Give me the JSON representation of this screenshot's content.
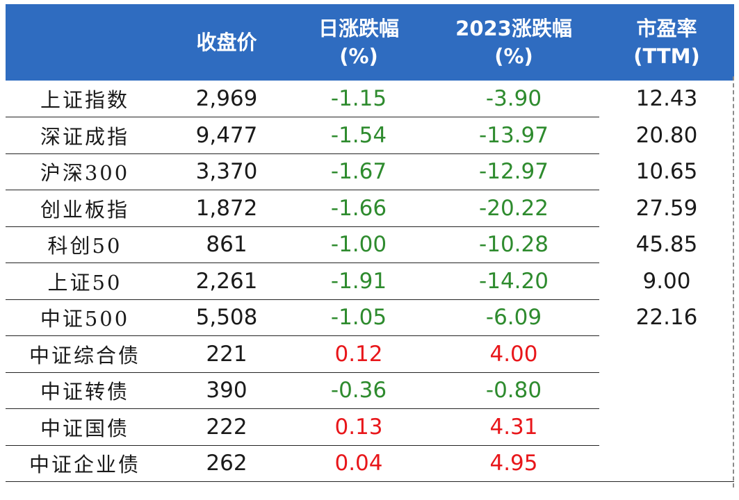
{
  "header": {
    "col0": "",
    "col1": "收盘价",
    "col2_line1": "日涨跌幅",
    "col2_line2": "(%)",
    "col3_line1": "2023涨跌幅",
    "col3_line2": "(%)",
    "col4_line1": "市盈率",
    "col4_line2": "(TTM)"
  },
  "colors": {
    "header_bg": "#2f6cc0",
    "negative": "#2e8b2e",
    "positive": "#e8161a"
  },
  "rows": [
    {
      "name": "上证指数",
      "close": "2,969",
      "daily": "-1.15",
      "ytd": "-3.90",
      "pe": "12.43"
    },
    {
      "name": "深证成指",
      "close": "9,477",
      "daily": "-1.54",
      "ytd": "-13.97",
      "pe": "20.80"
    },
    {
      "name": "沪深300",
      "close": "3,370",
      "daily": "-1.67",
      "ytd": "-12.97",
      "pe": "10.65"
    },
    {
      "name": "创业板指",
      "close": "1,872",
      "daily": "-1.66",
      "ytd": "-20.22",
      "pe": "27.59"
    },
    {
      "name": "科创50",
      "close": "861",
      "daily": "-1.00",
      "ytd": "-10.28",
      "pe": "45.85"
    },
    {
      "name": "上证50",
      "close": "2,261",
      "daily": "-1.91",
      "ytd": "-14.20",
      "pe": "9.00"
    },
    {
      "name": "中证500",
      "close": "5,508",
      "daily": "-1.05",
      "ytd": "-6.09",
      "pe": "22.16"
    },
    {
      "name": "中证综合债",
      "close": "221",
      "daily": "0.12",
      "ytd": "4.00",
      "pe": ""
    },
    {
      "name": "中证转债",
      "close": "390",
      "daily": "-0.36",
      "ytd": "-0.80",
      "pe": ""
    },
    {
      "name": "中证国债",
      "close": "222",
      "daily": "0.13",
      "ytd": "4.31",
      "pe": ""
    },
    {
      "name": "中证企业债",
      "close": "262",
      "daily": "0.04",
      "ytd": "4.95",
      "pe": ""
    }
  ]
}
